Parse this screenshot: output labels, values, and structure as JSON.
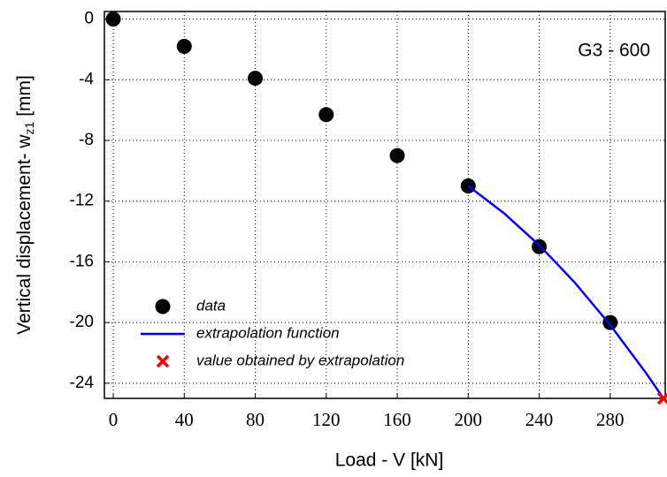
{
  "chart_data": {
    "type": "scatter",
    "annotation": "G3 - 600",
    "x_label": "Load - V [kN]",
    "y_label": {
      "main": "Vertical displacement- w",
      "sub": "z1",
      "unit": " [mm]"
    },
    "xlim": [
      -5,
      311
    ],
    "ylim": [
      -25,
      0.5
    ],
    "xticks": [
      0,
      40,
      80,
      120,
      160,
      200,
      240,
      280
    ],
    "yticks": [
      0,
      -4,
      -8,
      -12,
      -16,
      -20,
      -24
    ],
    "grid": true,
    "legend": "lower left",
    "series": [
      {
        "name": "data",
        "kind": "points",
        "color": "#000000",
        "x": [
          0,
          40,
          80,
          120,
          160,
          200,
          240,
          280
        ],
        "values": [
          0,
          -1.8,
          -3.9,
          -6.3,
          -9.0,
          -11.0,
          -15.0,
          -20.0
        ]
      },
      {
        "name": "extrapolation function",
        "kind": "line",
        "color": "#0000ff",
        "x": [
          200,
          220,
          240,
          260,
          280,
          300,
          310
        ],
        "values": [
          -11.0,
          -12.78,
          -14.9,
          -17.36,
          -20.16,
          -23.3,
          -25.0
        ]
      },
      {
        "name": "value obtained by extrapolation",
        "kind": "cross",
        "color": "#ff0000",
        "x": [
          310
        ],
        "values": [
          -25.0
        ]
      }
    ]
  }
}
